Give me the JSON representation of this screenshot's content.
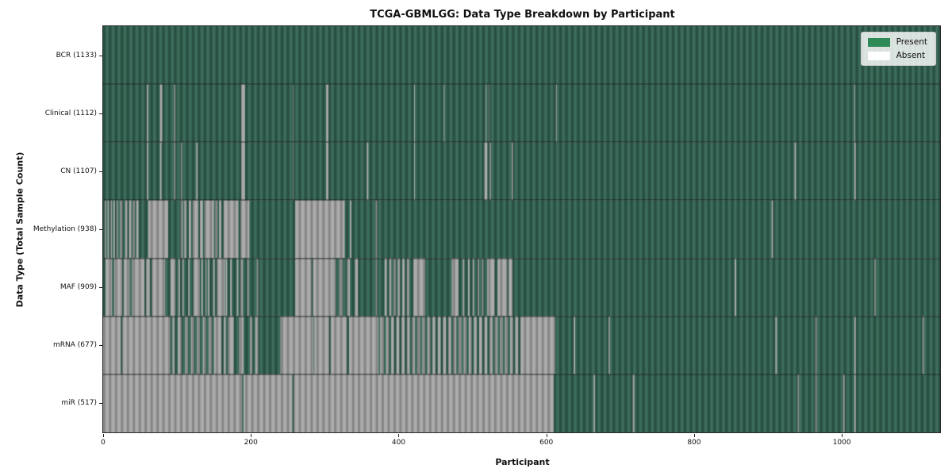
{
  "title": "TCGA-GBMLGG: Data Type Breakdown by Participant",
  "xlabel": "Participant",
  "ylabel": "Data Type (Total Sample Count)",
  "legend": {
    "present_label": "Present",
    "absent_label": "Absent"
  },
  "colors": {
    "present": "#2e8b57",
    "absent": "#ffffff",
    "present_plot": "#336352",
    "absent_plot": "#a7a7a7",
    "frame": "#2a2a2a"
  },
  "chart_data": {
    "type": "heatmap",
    "title": "TCGA-GBMLGG: Data Type Breakdown by Participant",
    "xlabel": "Participant",
    "ylabel": "Data Type (Total Sample Count)",
    "legend_entries": [
      "Present",
      "Absent"
    ],
    "legend_position": "upper right",
    "x_max": 1133,
    "x_ticks": [
      0,
      200,
      400,
      600,
      800,
      1000
    ],
    "value_encoding": "green bar = data present for participant, white/gray gap = absent; one vertical bar per participant",
    "rows": [
      {
        "name": "BCR",
        "total": 1133,
        "label": "BCR (1133)",
        "absent_runs": []
      },
      {
        "name": "Clinical",
        "total": 1112,
        "label": "Clinical (1112)",
        "absent_runs": [
          [
            59,
            61
          ],
          [
            77,
            80
          ],
          [
            96,
            98
          ],
          [
            187,
            192
          ],
          [
            257,
            258
          ],
          [
            302,
            305
          ],
          [
            421,
            422
          ],
          [
            461,
            462
          ],
          [
            518,
            519
          ],
          [
            522,
            523
          ],
          [
            613,
            614
          ],
          [
            1017,
            1018
          ]
        ]
      },
      {
        "name": "CN",
        "total": 1107,
        "label": "CN (1107)",
        "absent_runs": [
          [
            59,
            61
          ],
          [
            77,
            79
          ],
          [
            96,
            98
          ],
          [
            105,
            107
          ],
          [
            126,
            128
          ],
          [
            187,
            192
          ],
          [
            257,
            258
          ],
          [
            302,
            305
          ],
          [
            357,
            359
          ],
          [
            421,
            422
          ],
          [
            516,
            520
          ],
          [
            523,
            525
          ],
          [
            553,
            555
          ],
          [
            936,
            938
          ],
          [
            1017,
            1019
          ]
        ]
      },
      {
        "name": "Methylation",
        "total": 938,
        "label": "Methylation (938)",
        "absent_runs": [
          [
            2,
            4
          ],
          [
            6,
            8
          ],
          [
            10,
            12
          ],
          [
            14,
            16
          ],
          [
            18,
            20
          ],
          [
            23,
            26
          ],
          [
            30,
            33
          ],
          [
            35,
            38
          ],
          [
            40,
            43
          ],
          [
            45,
            48
          ],
          [
            61,
            88
          ],
          [
            105,
            108
          ],
          [
            110,
            113
          ],
          [
            116,
            119
          ],
          [
            121,
            129
          ],
          [
            131,
            135
          ],
          [
            137,
            150
          ],
          [
            152,
            155
          ],
          [
            157,
            160
          ],
          [
            163,
            183
          ],
          [
            186,
            198
          ],
          [
            260,
            327
          ],
          [
            334,
            336
          ],
          [
            369,
            371
          ],
          [
            905,
            907
          ]
        ]
      },
      {
        "name": "MAF",
        "total": 909,
        "label": "MAF (909)",
        "absent_runs": [
          [
            3,
            12
          ],
          [
            15,
            26
          ],
          [
            28,
            36
          ],
          [
            39,
            56
          ],
          [
            58,
            63
          ],
          [
            66,
            84
          ],
          [
            91,
            98
          ],
          [
            102,
            104
          ],
          [
            107,
            109
          ],
          [
            115,
            117
          ],
          [
            122,
            131
          ],
          [
            133,
            135
          ],
          [
            138,
            140
          ],
          [
            142,
            144
          ],
          [
            149,
            151
          ],
          [
            154,
            165
          ],
          [
            166,
            168
          ],
          [
            172,
            174
          ],
          [
            181,
            183
          ],
          [
            186,
            189
          ],
          [
            195,
            197
          ],
          [
            208,
            210
          ],
          [
            260,
            282
          ],
          [
            284,
            311
          ],
          [
            311,
            315
          ],
          [
            320,
            324
          ],
          [
            330,
            334
          ],
          [
            341,
            345
          ],
          [
            369,
            371
          ],
          [
            381,
            384
          ],
          [
            387,
            390
          ],
          [
            393,
            396
          ],
          [
            399,
            402
          ],
          [
            405,
            408
          ],
          [
            411,
            414
          ],
          [
            420,
            436
          ],
          [
            472,
            481
          ],
          [
            487,
            489
          ],
          [
            494,
            496
          ],
          [
            500,
            502
          ],
          [
            507,
            509
          ],
          [
            513,
            515
          ],
          [
            520,
            530
          ],
          [
            534,
            547
          ],
          [
            549,
            554
          ],
          [
            855,
            857
          ],
          [
            1044,
            1046
          ]
        ]
      },
      {
        "name": "mRNA",
        "total": 677,
        "label": "mRNA (677)",
        "absent_runs": [
          [
            0,
            24
          ],
          [
            26,
            91
          ],
          [
            94,
            97
          ],
          [
            101,
            106
          ],
          [
            111,
            115
          ],
          [
            119,
            123
          ],
          [
            127,
            131
          ],
          [
            135,
            139
          ],
          [
            143,
            147
          ],
          [
            150,
            160
          ],
          [
            163,
            166
          ],
          [
            169,
            177
          ],
          [
            184,
            190
          ],
          [
            199,
            202
          ],
          [
            206,
            210
          ],
          [
            240,
            285
          ],
          [
            286,
            306
          ],
          [
            308,
            330
          ],
          [
            333,
            373
          ],
          [
            375,
            380
          ],
          [
            383,
            387
          ],
          [
            390,
            394
          ],
          [
            397,
            401
          ],
          [
            404,
            408
          ],
          [
            411,
            415
          ],
          [
            418,
            422
          ],
          [
            425,
            429
          ],
          [
            432,
            436
          ],
          [
            439,
            443
          ],
          [
            446,
            450
          ],
          [
            453,
            457
          ],
          [
            460,
            464
          ],
          [
            467,
            471
          ],
          [
            474,
            478
          ],
          [
            481,
            485
          ],
          [
            488,
            492
          ],
          [
            495,
            499
          ],
          [
            502,
            506
          ],
          [
            509,
            513
          ],
          [
            516,
            520
          ],
          [
            523,
            527
          ],
          [
            530,
            534
          ],
          [
            537,
            541
          ],
          [
            544,
            548
          ],
          [
            551,
            555
          ],
          [
            558,
            562
          ],
          [
            565,
            612
          ],
          [
            637,
            639
          ],
          [
            684,
            686
          ],
          [
            910,
            912
          ],
          [
            964,
            966
          ],
          [
            1017,
            1019
          ],
          [
            1109,
            1111
          ]
        ]
      },
      {
        "name": "miR",
        "total": 517,
        "label": "miR (517)",
        "absent_runs": [
          [
            0,
            188
          ],
          [
            190,
            256
          ],
          [
            258,
            610
          ],
          [
            664,
            666
          ],
          [
            717,
            719
          ],
          [
            940,
            942
          ],
          [
            964,
            966
          ],
          [
            1002,
            1004
          ],
          [
            1017,
            1019
          ]
        ]
      }
    ]
  }
}
